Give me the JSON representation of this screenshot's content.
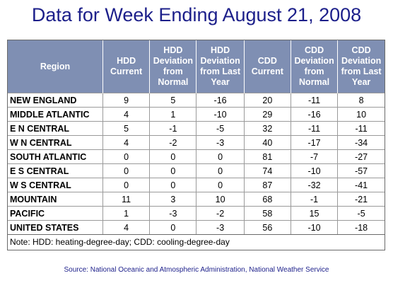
{
  "title": "Data for Week Ending August 21, 2008",
  "table": {
    "headers": [
      "Region",
      "HDD Current",
      "HDD Deviation from Normal",
      "HDD Deviation from Last Year",
      "CDD Current",
      "CDD Deviation from Normal",
      "CDD Deviation from Last Year"
    ],
    "rows": [
      [
        "NEW ENGLAND",
        "9",
        "5",
        "-16",
        "20",
        "-11",
        "8"
      ],
      [
        "MIDDLE ATLANTIC",
        "4",
        "1",
        "-10",
        "29",
        "-16",
        "10"
      ],
      [
        "E N CENTRAL",
        "5",
        "-1",
        "-5",
        "32",
        "-11",
        "-11"
      ],
      [
        "W N CENTRAL",
        "4",
        "-2",
        "-3",
        "40",
        "-17",
        "-34"
      ],
      [
        "SOUTH ATLANTIC",
        "0",
        "0",
        "0",
        "81",
        "-7",
        "-27"
      ],
      [
        "E S CENTRAL",
        "0",
        "0",
        "0",
        "74",
        "-10",
        "-57"
      ],
      [
        "W S CENTRAL",
        "0",
        "0",
        "0",
        "87",
        "-32",
        "-41"
      ],
      [
        "MOUNTAIN",
        "11",
        "3",
        "10",
        "68",
        "-1",
        "-21"
      ],
      [
        "PACIFIC",
        "1",
        "-3",
        "-2",
        "58",
        "15",
        "-5"
      ],
      [
        "UNITED STATES",
        "4",
        "0",
        "-3",
        "56",
        "-10",
        "-18"
      ]
    ]
  },
  "note": "Note: HDD: heating-degree-day; CDD: cooling-degree-day",
  "source": "Source:  National Oceanic and Atmospheric Administration, National Weather Service",
  "colors": {
    "title": "#1c1f8a",
    "header_bg": "#7f8fb3",
    "header_text": "#ffffff"
  }
}
